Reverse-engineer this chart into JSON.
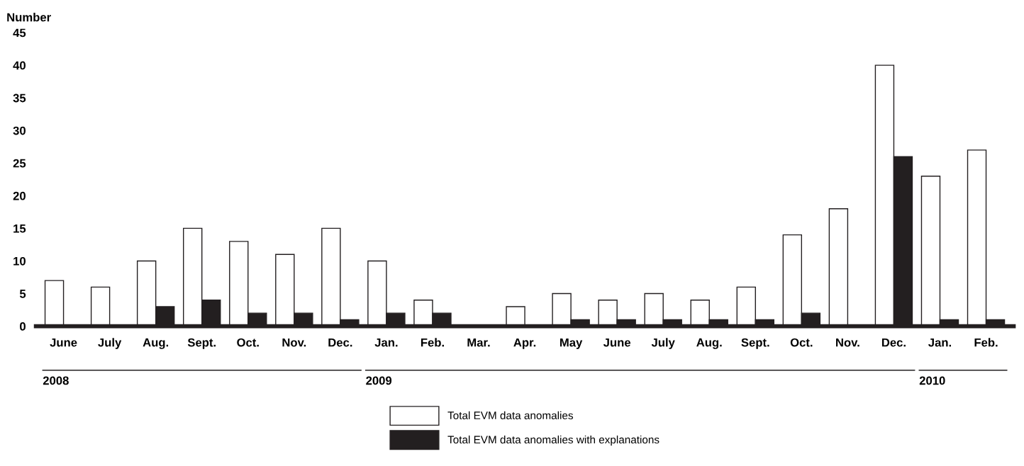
{
  "chart_data": {
    "type": "bar",
    "ylabel": "Number",
    "categories": [
      "June",
      "July",
      "Aug.",
      "Sept.",
      "Oct.",
      "Nov.",
      "Dec.",
      "Jan.",
      "Feb.",
      "Mar.",
      "Apr.",
      "May",
      "June",
      "July",
      "Aug.",
      "Sept.",
      "Oct.",
      "Nov.",
      "Dec.",
      "Jan.",
      "Feb."
    ],
    "series": [
      {
        "name": "Total EVM data anomalies",
        "color": "#ffffff",
        "values": [
          7,
          6,
          10,
          15,
          13,
          11,
          15,
          10,
          4,
          0,
          3,
          5,
          4,
          5,
          4,
          6,
          14,
          18,
          40,
          23,
          27
        ]
      },
      {
        "name": "Total EVM data anomalies with explanations",
        "color": "#231f20",
        "values": [
          0,
          0,
          3,
          4,
          2,
          2,
          1,
          2,
          2,
          0,
          0,
          1,
          1,
          1,
          1,
          1,
          2,
          0,
          26,
          1,
          1
        ]
      }
    ],
    "ylim": [
      0,
      45
    ],
    "yticks": [
      0,
      5,
      10,
      15,
      20,
      25,
      30,
      35,
      40,
      45
    ],
    "grid": false,
    "legend": "bottom",
    "annotations": [
      "2008",
      "2009",
      "2010"
    ]
  }
}
